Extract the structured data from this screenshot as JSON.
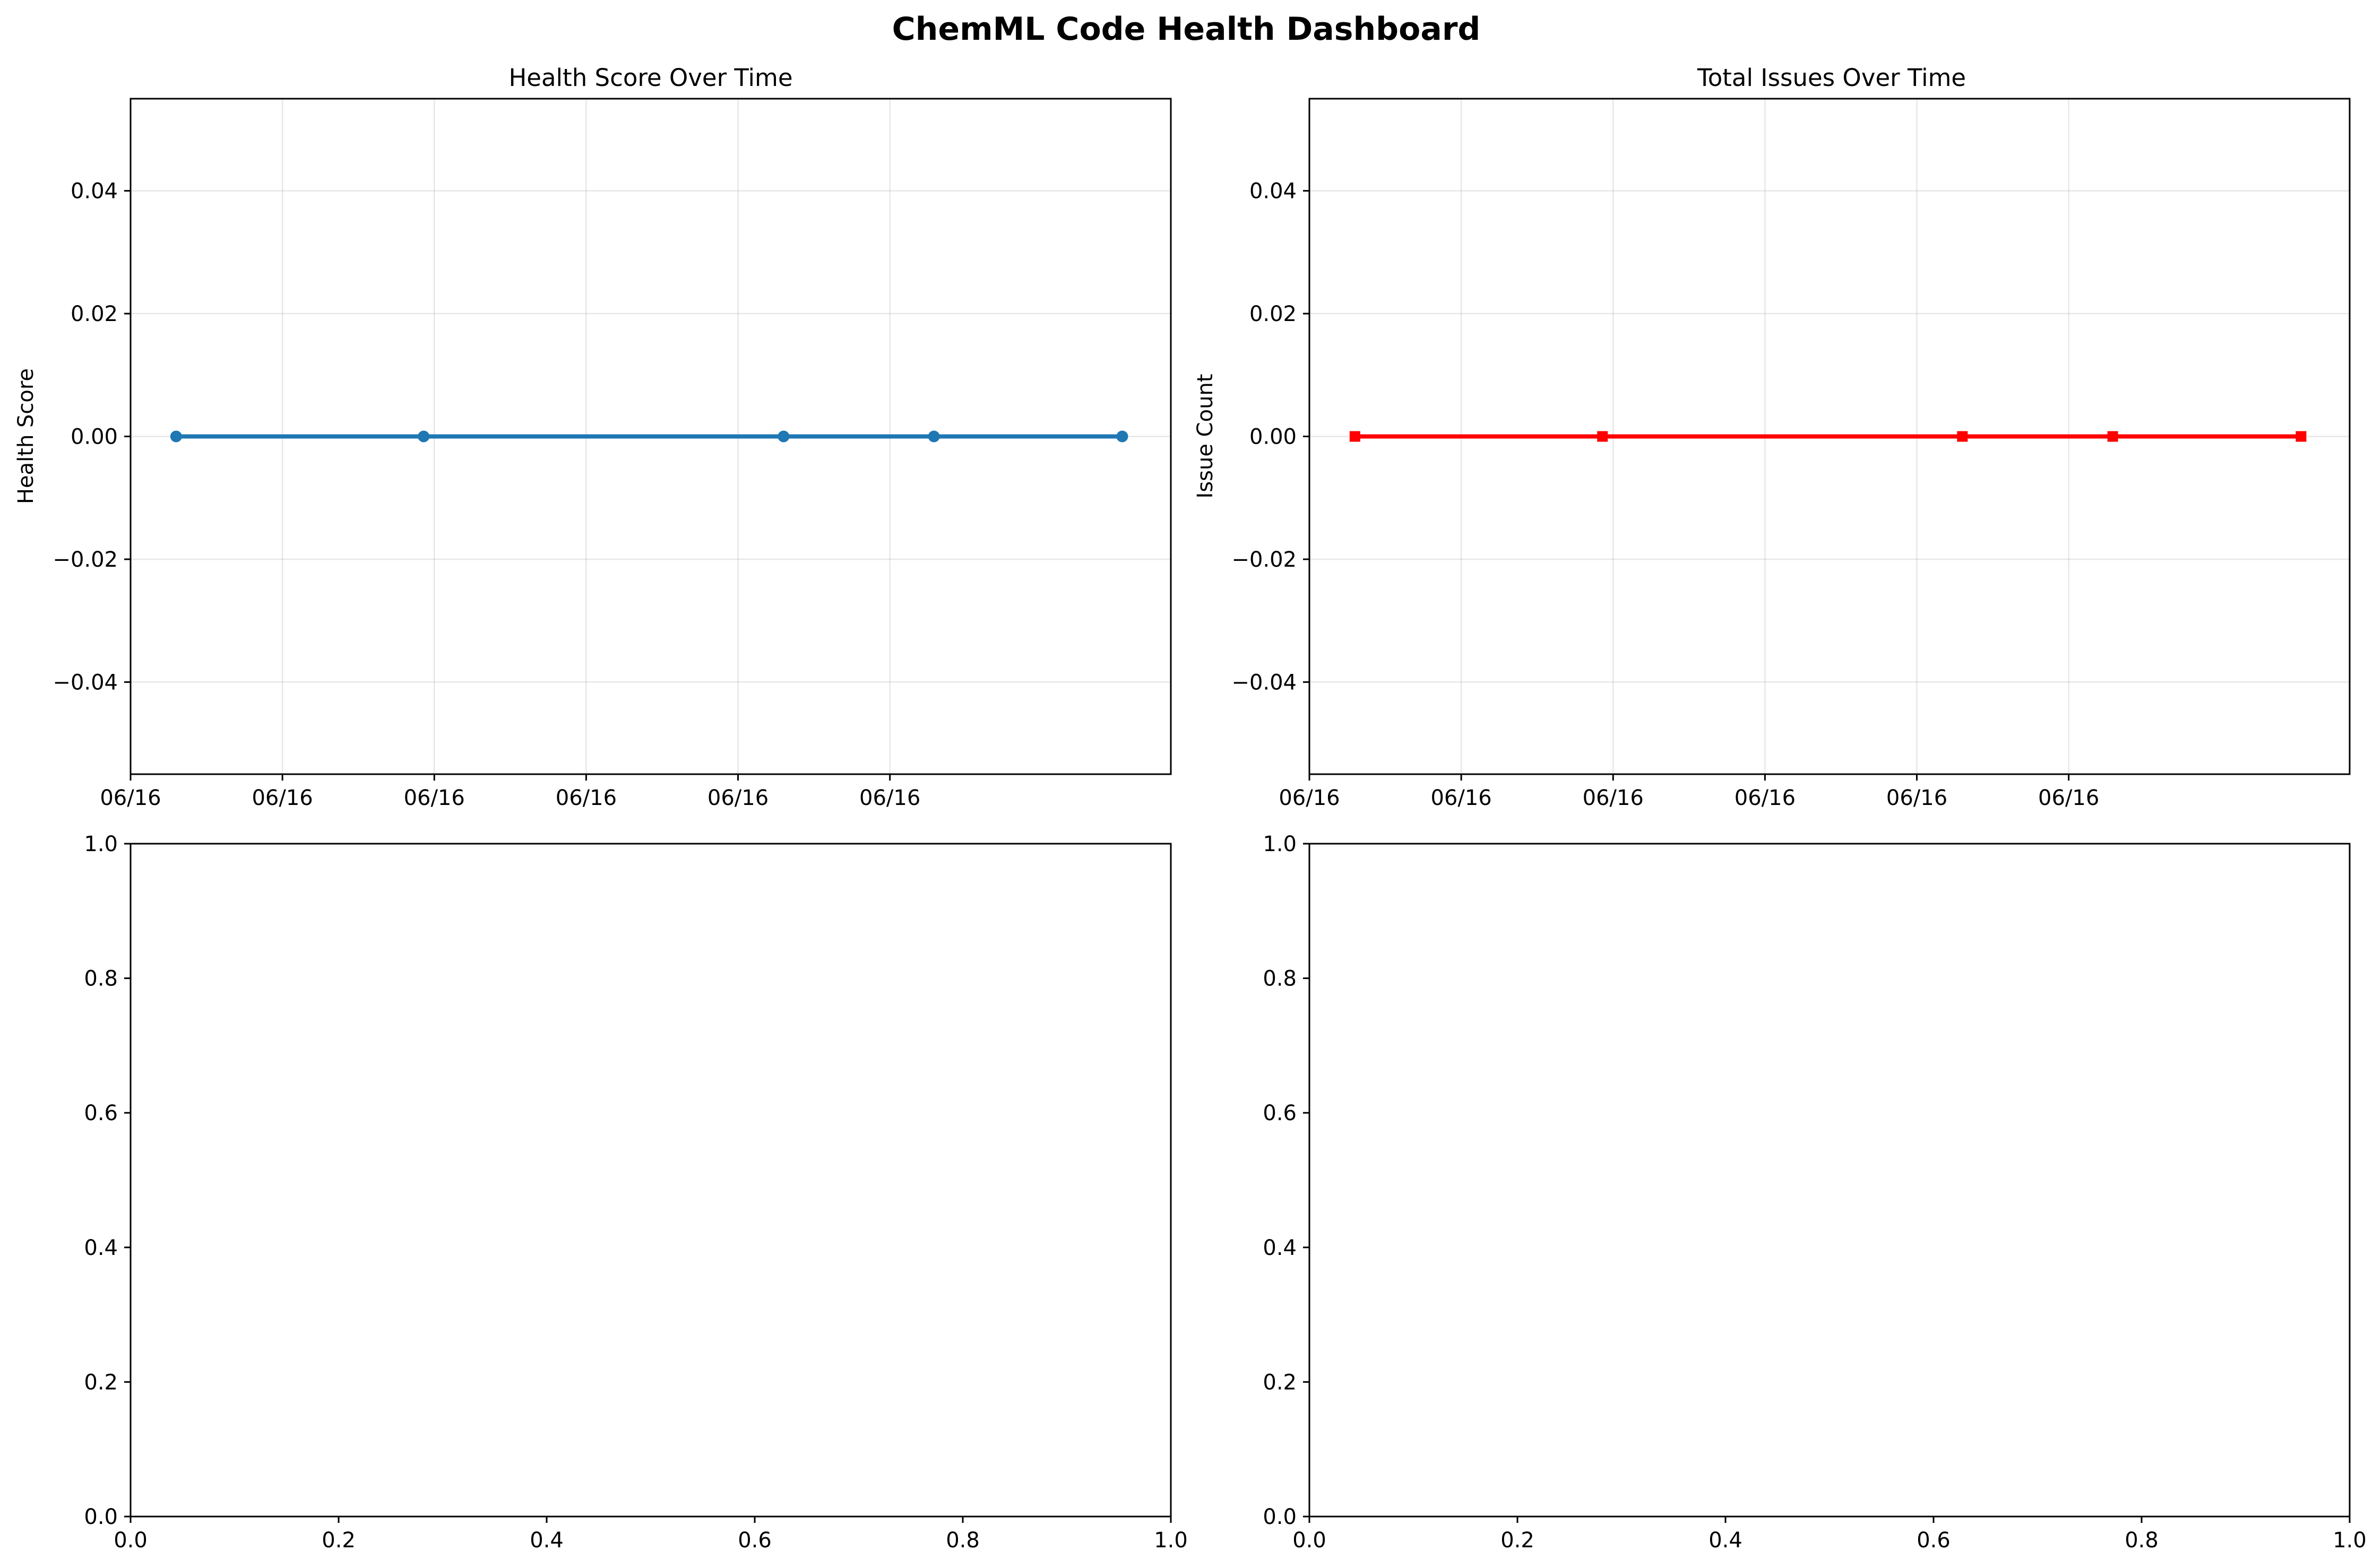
{
  "title": "ChemML Code Health Dashboard",
  "colors": {
    "health_line": "#1f77b4",
    "issues_line": "#ff0000"
  },
  "chart_data": [
    {
      "type": "line",
      "title": "Health Score Over Time",
      "xlabel": "",
      "ylabel": "Health Score",
      "grid": true,
      "marker": "circle",
      "color": "#1f77b4",
      "x_tick_labels": [
        "06/16",
        "06/16",
        "06/16",
        "06/16",
        "06/16",
        "06/16"
      ],
      "y_ticks": [
        -0.04,
        -0.02,
        0.0,
        0.02,
        0.04
      ],
      "y_tick_labels": [
        "−0.04",
        "−0.02",
        "0.00",
        "0.02",
        "0.04"
      ],
      "ylim": [
        -0.055,
        0.055
      ],
      "x_positions": [
        0.3,
        1.93,
        4.3,
        5.29,
        6.53
      ],
      "xlim": [
        0,
        6.85
      ],
      "x_tick_positions": [
        0,
        1,
        2,
        3,
        4,
        5
      ],
      "series": [
        {
          "values": [
            0,
            0,
            0,
            0,
            0
          ]
        }
      ]
    },
    {
      "type": "line",
      "title": "Total Issues Over Time",
      "xlabel": "",
      "ylabel": "Issue Count",
      "grid": true,
      "marker": "square",
      "color": "#ff0000",
      "x_tick_labels": [
        "06/16",
        "06/16",
        "06/16",
        "06/16",
        "06/16",
        "06/16"
      ],
      "y_ticks": [
        -0.04,
        -0.02,
        0.0,
        0.02,
        0.04
      ],
      "y_tick_labels": [
        "−0.04",
        "−0.02",
        "0.00",
        "0.02",
        "0.04"
      ],
      "ylim": [
        -0.055,
        0.055
      ],
      "x_positions": [
        0.3,
        1.93,
        4.3,
        5.29,
        6.53
      ],
      "xlim": [
        0,
        6.85
      ],
      "x_tick_positions": [
        0,
        1,
        2,
        3,
        4,
        5
      ],
      "series": [
        {
          "values": [
            0,
            0,
            0,
            0,
            0
          ]
        }
      ]
    },
    {
      "type": "line",
      "title": "",
      "xlim": [
        0,
        1
      ],
      "ylim": [
        0,
        1
      ],
      "x_ticks": [
        0.0,
        0.2,
        0.4,
        0.6,
        0.8,
        1.0
      ],
      "x_tick_labels": [
        "0.0",
        "0.2",
        "0.4",
        "0.6",
        "0.8",
        "1.0"
      ],
      "y_ticks": [
        0.0,
        0.2,
        0.4,
        0.6,
        0.8,
        1.0
      ],
      "y_tick_labels": [
        "0.0",
        "0.2",
        "0.4",
        "0.6",
        "0.8",
        "1.0"
      ],
      "grid": false,
      "series": []
    },
    {
      "type": "line",
      "title": "",
      "xlim": [
        0,
        1
      ],
      "ylim": [
        0,
        1
      ],
      "x_ticks": [
        0.0,
        0.2,
        0.4,
        0.6,
        0.8,
        1.0
      ],
      "x_tick_labels": [
        "0.0",
        "0.2",
        "0.4",
        "0.6",
        "0.8",
        "1.0"
      ],
      "y_ticks": [
        0.0,
        0.2,
        0.4,
        0.6,
        0.8,
        1.0
      ],
      "y_tick_labels": [
        "0.0",
        "0.2",
        "0.4",
        "0.6",
        "0.8",
        "1.0"
      ],
      "grid": false,
      "series": []
    }
  ]
}
